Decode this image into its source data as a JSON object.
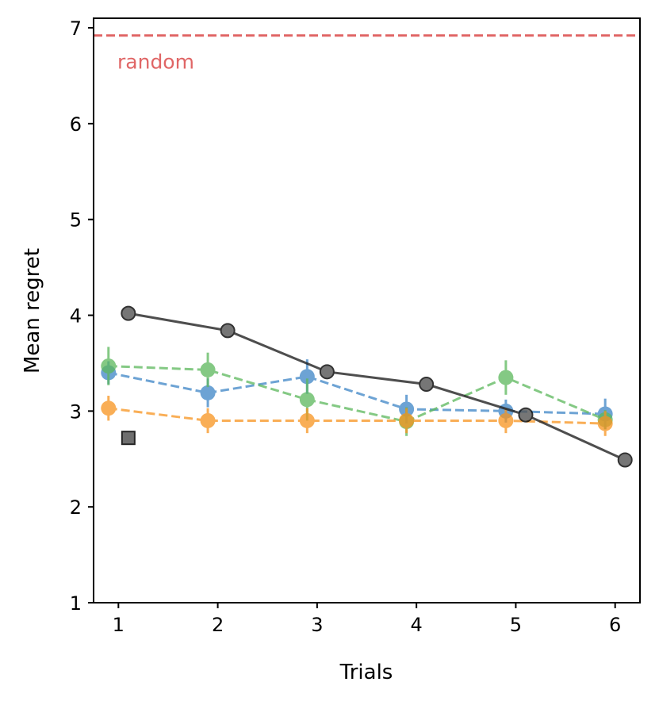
{
  "chart_data": {
    "type": "line",
    "title": "",
    "xlabel": "Trials",
    "ylabel": "Mean regret",
    "xlim": [
      0.75,
      6.25
    ],
    "ylim": [
      1,
      7.1
    ],
    "xticks": [
      1,
      2,
      3,
      4,
      5,
      6
    ],
    "yticks": [
      1,
      2,
      3,
      4,
      5,
      6,
      7
    ],
    "grid": false,
    "legend": null,
    "reference_line": {
      "label": "random",
      "y": 6.92,
      "color": "#e06666"
    },
    "series": [
      {
        "name": "blue",
        "color": "#3d85c6",
        "style": "dashed",
        "x": [
          0.9,
          1.9,
          2.9,
          3.9,
          4.9,
          5.9
        ],
        "values": [
          3.4,
          3.19,
          3.36,
          3.02,
          3.0,
          2.97
        ],
        "errors": [
          0.12,
          0.15,
          0.18,
          0.15,
          0.12,
          0.16
        ]
      },
      {
        "name": "green",
        "color": "#5cb85c",
        "style": "dashed",
        "x": [
          0.9,
          1.9,
          2.9,
          3.9,
          4.9,
          5.9
        ],
        "values": [
          3.47,
          3.43,
          3.12,
          2.89,
          3.35,
          2.91
        ],
        "errors": [
          0.2,
          0.18,
          0.22,
          0.15,
          0.18,
          0.1
        ]
      },
      {
        "name": "orange",
        "color": "#f7931e",
        "style": "dashed",
        "x": [
          0.9,
          1.9,
          2.9,
          3.9,
          4.9,
          5.9
        ],
        "values": [
          3.03,
          2.9,
          2.9,
          2.9,
          2.9,
          2.87
        ],
        "errors": [
          0.13,
          0.13,
          0.13,
          0.13,
          0.13,
          0.13
        ]
      },
      {
        "name": "black",
        "color": "#222222",
        "style": "solid",
        "x": [
          1.1,
          2.1,
          3.1,
          4.1,
          5.1,
          6.1
        ],
        "values": [
          4.02,
          3.84,
          3.41,
          3.28,
          2.96,
          2.49
        ],
        "errors": [
          0.04,
          0.04,
          0.04,
          0.04,
          0.04,
          0.04
        ]
      }
    ],
    "extra_points": [
      {
        "name": "black-square",
        "x": 1.1,
        "y": 2.72,
        "marker": "square",
        "color": "#222222"
      }
    ]
  }
}
